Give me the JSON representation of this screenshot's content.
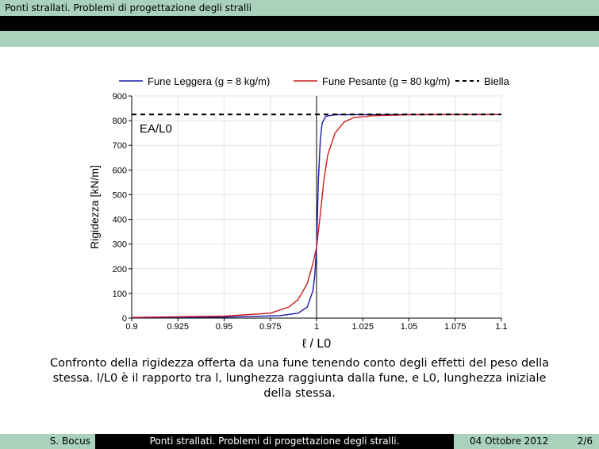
{
  "header": {
    "title": "Ponti strallati. Problemi di progettazione degli stralli"
  },
  "chart_data": {
    "type": "line",
    "xlabel": "ℓ / L0",
    "ylabel": "Rigidezza [kN/m]",
    "xlim": [
      0.9,
      1.1
    ],
    "ylim": [
      0,
      900
    ],
    "xticks": [
      "0.9",
      "0.925",
      "0.95",
      "0.975",
      "1",
      "1.025",
      "1.05",
      "1.075",
      "1.1"
    ],
    "yticks": [
      "0",
      "100",
      "200",
      "300",
      "400",
      "500",
      "600",
      "700",
      "800",
      "900"
    ],
    "grid": true,
    "legend": "top",
    "annotation": "EA/L0",
    "series": [
      {
        "name": "Fune Leggera (g = 8 kg/m)",
        "color": "#1a1aa8",
        "dash": false,
        "x": [
          0.9,
          0.95,
          0.98,
          0.99,
          0.995,
          0.998,
          0.999,
          1.0,
          1.001,
          1.002,
          1.003,
          1.005,
          1.01,
          1.1
        ],
        "y": [
          2,
          4,
          10,
          20,
          45,
          110,
          170,
          286,
          560,
          720,
          790,
          818,
          824,
          825
        ]
      },
      {
        "name": "Fune Pesante (g = 80 kg/m)",
        "color": "#cc1a1a",
        "dash": false,
        "x": [
          0.9,
          0.95,
          0.975,
          0.985,
          0.99,
          0.995,
          0.998,
          1.0,
          1.002,
          1.004,
          1.006,
          1.01,
          1.015,
          1.02,
          1.03,
          1.05,
          1.1
        ],
        "y": [
          3,
          8,
          20,
          45,
          75,
          140,
          220,
          286,
          420,
          560,
          660,
          750,
          795,
          812,
          820,
          824,
          825
        ]
      },
      {
        "name": "Biella",
        "color": "#000000",
        "dash": true,
        "x": [
          0.9,
          1.1
        ],
        "y": [
          825,
          825
        ]
      }
    ]
  },
  "caption": {
    "line1": "Confronto della rigidezza offerta da una fune tenendo conto degli effetti del peso della",
    "line2": "stessa. l/L0 è il rapporto tra l, lunghezza raggiunta dalla fune, e L0, lunghezza iniziale",
    "line3": "della stessa."
  },
  "footer": {
    "author": "S. Bocus",
    "title": "Ponti strallati. Problemi di progettazione degli stralli.",
    "date": "04 Ottobre 2012",
    "page": "2/6"
  }
}
